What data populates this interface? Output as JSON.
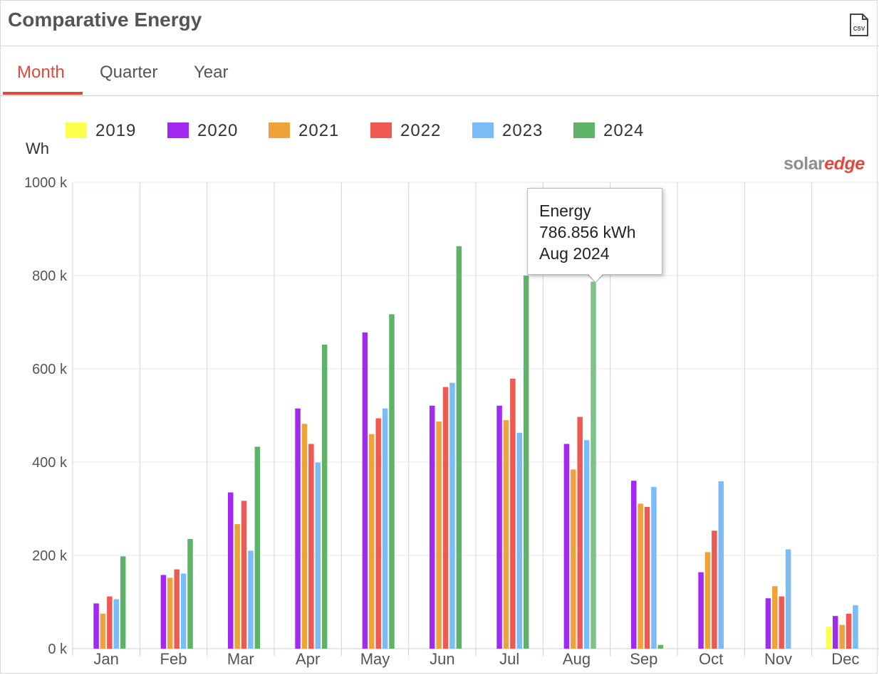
{
  "title": "Comparative Energy",
  "csv_icon": "csv-download-icon",
  "csv_label": "CSV",
  "tabs": [
    {
      "label": "Month",
      "active": true
    },
    {
      "label": "Quarter",
      "active": false
    },
    {
      "label": "Year",
      "active": false
    }
  ],
  "accent_color": "#e8463c",
  "logo": {
    "part1": "solar",
    "part2": "edge"
  },
  "tooltip": {
    "line1": "Energy",
    "line2": "786.856 kWh",
    "line3": "Aug 2024"
  },
  "chart_data": {
    "type": "bar",
    "ylabel": "Wh",
    "ylim": [
      0,
      1000000
    ],
    "yticks": [
      "0 k",
      "200 k",
      "400 k",
      "600 k",
      "800 k",
      "1000 k"
    ],
    "ytick_values": [
      0,
      200000,
      400000,
      600000,
      800000,
      1000000
    ],
    "grid": true,
    "legend_position": "top-left",
    "categories": [
      "Jan",
      "Feb",
      "Mar",
      "Apr",
      "May",
      "Jun",
      "Jul",
      "Aug",
      "Sep",
      "Oct",
      "Nov",
      "Dec"
    ],
    "series": [
      {
        "name": "2019",
        "color": "#fefe4d",
        "values": [
          null,
          null,
          null,
          null,
          null,
          null,
          null,
          null,
          null,
          null,
          null,
          47000
        ]
      },
      {
        "name": "2020",
        "color": "#a229f2",
        "values": [
          97000,
          158000,
          335000,
          515000,
          678000,
          521000,
          521000,
          439000,
          360000,
          164000,
          108000,
          70000
        ]
      },
      {
        "name": "2021",
        "color": "#f0a23a",
        "values": [
          75000,
          152000,
          267000,
          482000,
          460000,
          487000,
          490000,
          384000,
          311000,
          207000,
          134000,
          51000
        ]
      },
      {
        "name": "2022",
        "color": "#ee5a52",
        "values": [
          112000,
          170000,
          317000,
          439000,
          494000,
          561000,
          579000,
          497000,
          304000,
          253000,
          112000,
          75000
        ]
      },
      {
        "name": "2023",
        "color": "#7bbcf7",
        "values": [
          106000,
          161000,
          210000,
          399000,
          515000,
          570000,
          463000,
          447000,
          347000,
          359000,
          213000,
          93000
        ]
      },
      {
        "name": "2024",
        "color": "#5fb369",
        "values": [
          198000,
          235000,
          433000,
          652000,
          717000,
          863000,
          800000,
          786856,
          8000,
          null,
          null,
          null
        ]
      }
    ]
  }
}
